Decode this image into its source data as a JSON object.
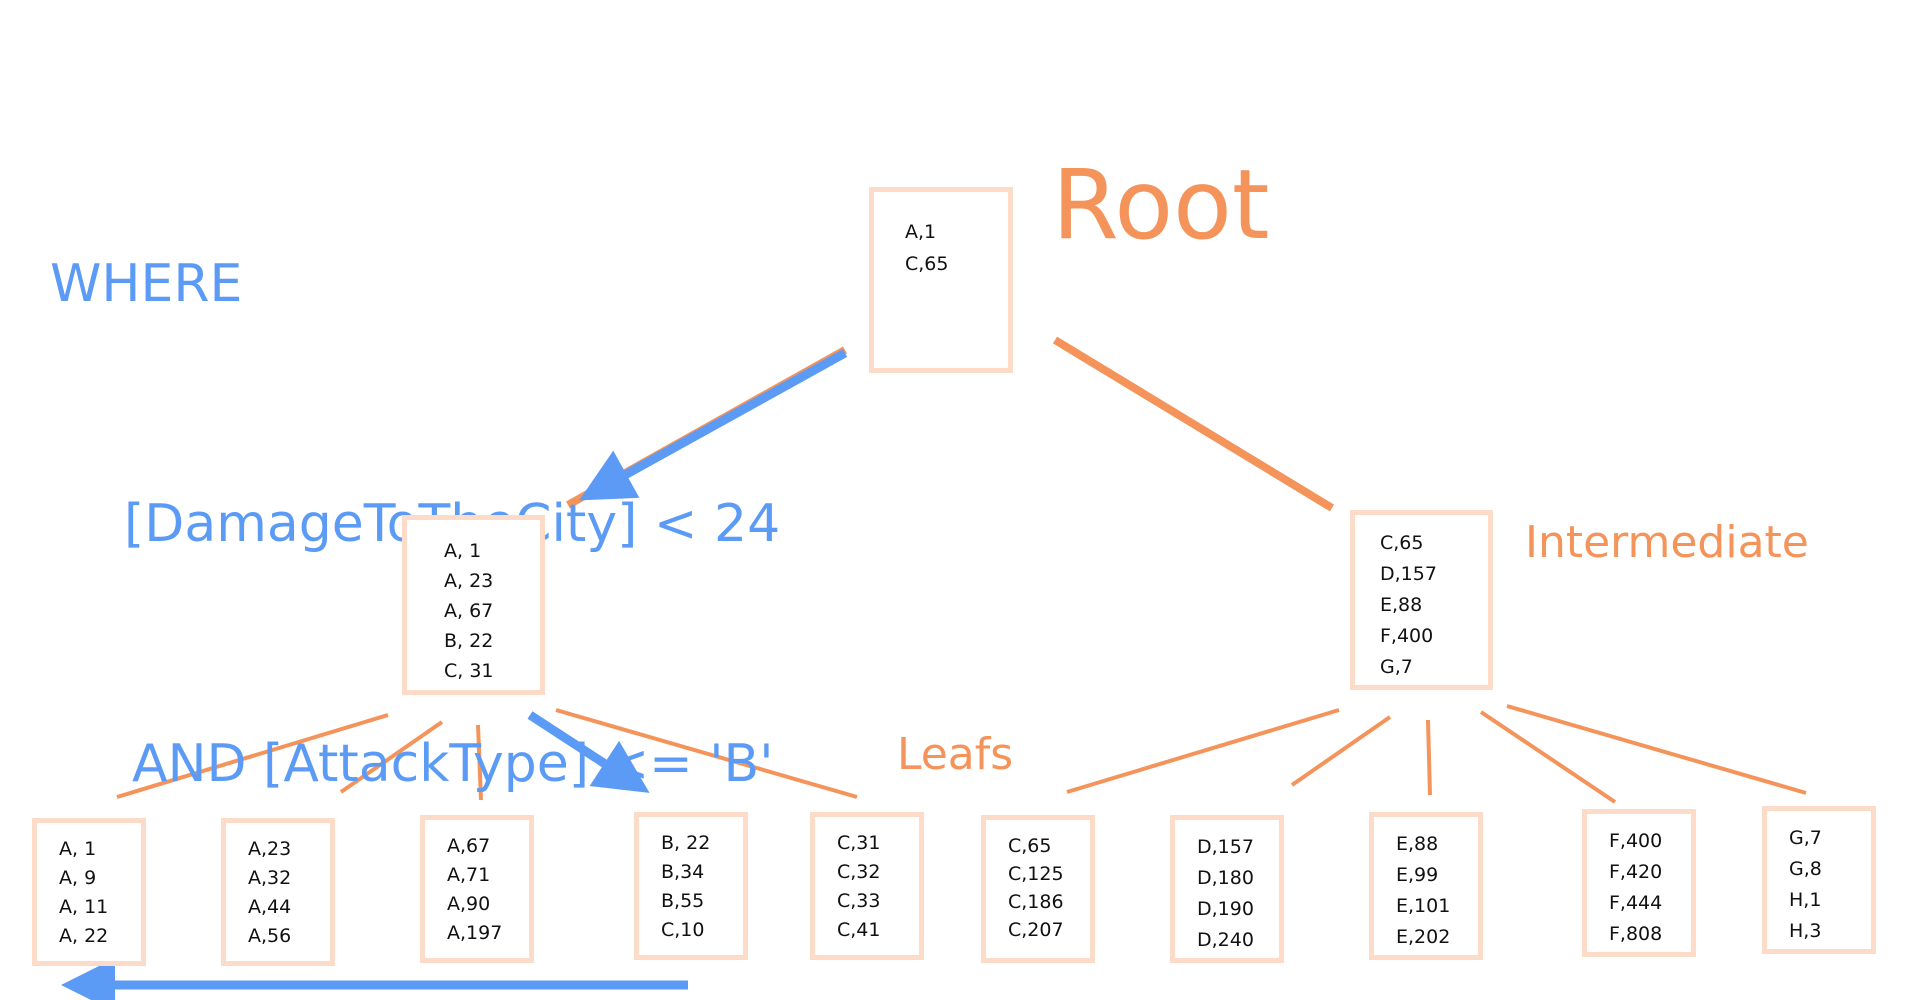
{
  "query": {
    "line1": "WHERE",
    "line2": "[DamageToTheCity] < 24",
    "line3": "AND [AttackType] <= 'B'"
  },
  "labels": {
    "root": "Root",
    "intermediate": "Intermediate",
    "leafs": "Leafs"
  },
  "colors": {
    "tree": "#f4935a",
    "node_border": "#fcdcc8",
    "seek_path": "#5b9bf5"
  },
  "root": {
    "entries": [
      "A,1",
      "C,65"
    ]
  },
  "intermediate": [
    {
      "entries": [
        "A, 1",
        "A, 23",
        "A, 67",
        "B, 22",
        "C, 31"
      ]
    },
    {
      "entries": [
        "C,65",
        "D,157",
        "E,88",
        "F,400",
        "G,7"
      ]
    }
  ],
  "leaves": [
    {
      "entries": [
        "A, 1",
        "A, 9",
        "A, 11",
        "A, 22"
      ]
    },
    {
      "entries": [
        "A,23",
        "A,32",
        "A,44",
        "A,56"
      ]
    },
    {
      "entries": [
        "A,67",
        "A,71",
        "A,90",
        "A,197"
      ]
    },
    {
      "entries": [
        "B, 22",
        "B,34",
        "B,55",
        "C,10"
      ]
    },
    {
      "entries": [
        "C,31",
        "C,32",
        "C,33",
        "C,41"
      ]
    },
    {
      "entries": [
        "C,65",
        "C,125",
        "C,186",
        "C,207"
      ]
    },
    {
      "entries": [
        "D,157",
        "D,180",
        "D,190",
        "D,240"
      ]
    },
    {
      "entries": [
        "E,88",
        "E,99",
        "E,101",
        "E,202"
      ]
    },
    {
      "entries": [
        "F,400",
        "F,420",
        "F,444",
        "F,808"
      ]
    },
    {
      "entries": [
        "G,7",
        "G,8",
        "H,1",
        "H,3"
      ]
    }
  ]
}
